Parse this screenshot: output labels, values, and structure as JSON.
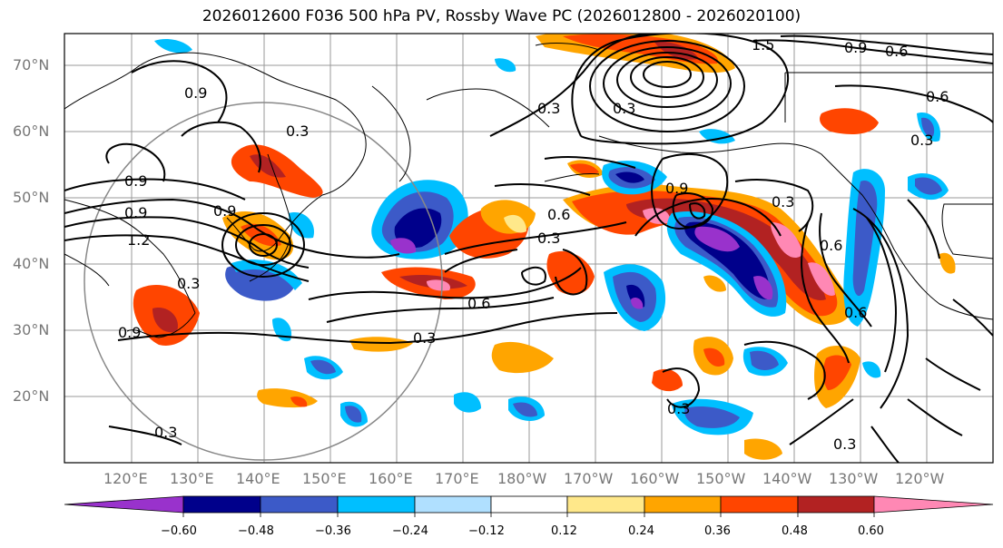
{
  "title": "2026012600 F036 500 hPa PV, Rossby Wave PC (2026012800 - 2026020100)",
  "lat_labels": [
    "70°N",
    "60°N",
    "50°N",
    "40°N",
    "30°N",
    "20°N"
  ],
  "lon_labels": [
    "120°E",
    "130°E",
    "140°E",
    "150°E",
    "160°E",
    "170°E",
    "180°W",
    "170°W",
    "160°W",
    "150°W",
    "140°W",
    "130°W",
    "120°W"
  ],
  "contour_labels": [
    "1.5",
    "0.9",
    "0.6",
    "0.3",
    "0.9",
    "0.3",
    "0.9",
    "0.9",
    "0.3",
    "0.9",
    "1.2",
    "0.3",
    "0.6",
    "0.3",
    "0.6",
    "0.3",
    "0.9",
    "0.3",
    "0.6",
    "0.6",
    "0.3",
    "0.3",
    "0.3",
    "0.9",
    "0.6",
    "0.3"
  ],
  "colorbar": {
    "colors": [
      "#9932cc",
      "#00008b",
      "#3c5ac8",
      "#00bfff",
      "#b0e0ff",
      "#ffffff",
      "#ffe88a",
      "#ffa500",
      "#ff4500",
      "#b22222",
      "#ff88b4"
    ],
    "tick_labels": [
      "−0.60",
      "−0.48",
      "−0.36",
      "−0.24",
      "−0.12",
      "0.12",
      "0.24",
      "0.36",
      "0.48",
      "0.60"
    ]
  }
}
